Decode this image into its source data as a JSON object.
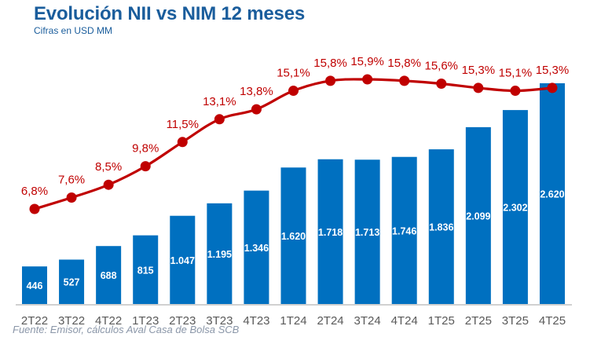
{
  "chart_data": {
    "type": "bar+line",
    "title": "Evolución NII vs NIM 12 meses",
    "subtitle": "Cifras en USD MM",
    "source": "Fuente: Emisor, cálculos Aval Casa de Bolsa SCB",
    "categories": [
      "2T22",
      "3T22",
      "4T22",
      "1T23",
      "2T23",
      "3T23",
      "4T23",
      "1T24",
      "2T24",
      "3T24",
      "4T24",
      "1T25",
      "2T25",
      "3T25",
      "4T25"
    ],
    "series": [
      {
        "name": "NII",
        "type": "bar",
        "color": "#0070c0",
        "values": [
          446,
          527,
          688,
          815,
          1047,
          1195,
          1346,
          1620,
          1718,
          1713,
          1746,
          1836,
          2099,
          2302,
          2620
        ],
        "labels": [
          "446",
          "527",
          "688",
          "815",
          "1.047",
          "1.195",
          "1.346",
          "1.620",
          "1.718",
          "1.713",
          "1.746",
          "1.836",
          "2.099",
          "2.302",
          "2.620"
        ]
      },
      {
        "name": "NIM",
        "type": "line",
        "color": "#c00000",
        "values": [
          6.8,
          7.6,
          8.5,
          9.8,
          11.5,
          13.1,
          13.8,
          15.1,
          15.8,
          15.9,
          15.8,
          15.6,
          15.3,
          15.1,
          15.3
        ],
        "labels": [
          "6,8%",
          "7,6%",
          "8,5%",
          "9,8%",
          "11,5%",
          "13,1%",
          "13,8%",
          "15,1%",
          "15,8%",
          "15,9%",
          "15,8%",
          "15,6%",
          "15,3%",
          "15,1%",
          "15,3%"
        ]
      }
    ],
    "xlabel": "",
    "ylabel": "",
    "grid": false,
    "legend": "none"
  }
}
